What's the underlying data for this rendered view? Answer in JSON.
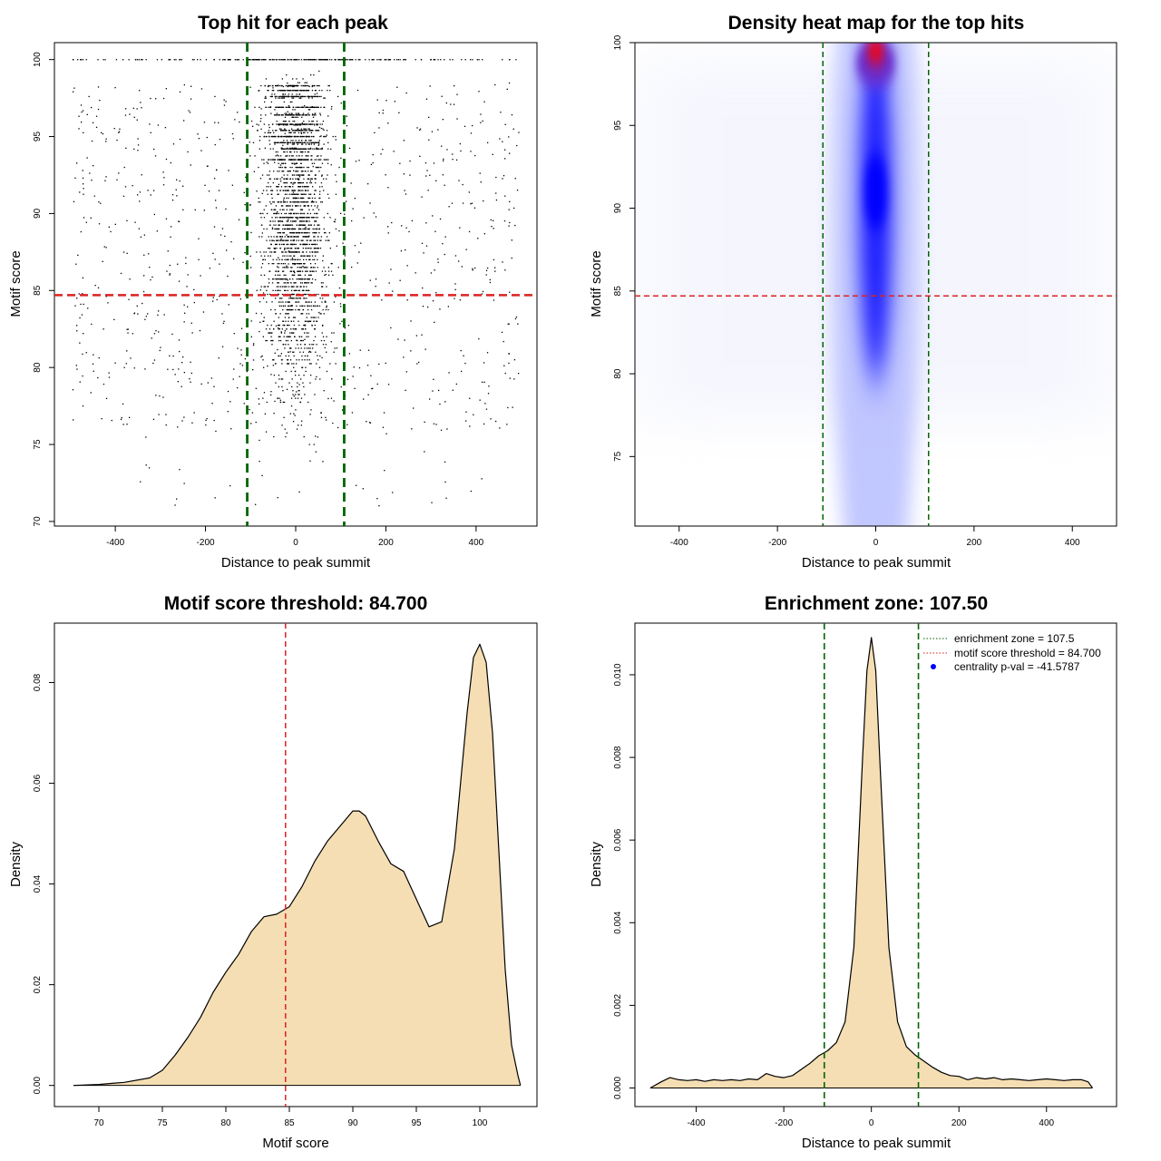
{
  "chart_data": [
    {
      "id": "p1",
      "type": "scatter",
      "title": "Top hit for each peak",
      "xlabel": "Distance to peak summit",
      "ylabel": "Motif score",
      "xlim": [
        -535,
        535
      ],
      "ylim": [
        69.7,
        101.1
      ],
      "xticks": [
        -400,
        -200,
        0,
        200,
        400
      ],
      "yticks": [
        70,
        75,
        80,
        85,
        90,
        95,
        100
      ],
      "threshold_y": 84.7,
      "zone_x": [
        -107.5,
        107.5
      ],
      "point_density_sd_center": 45,
      "point_count_approx": 3000
    },
    {
      "id": "p2",
      "type": "heatmap",
      "title": "Density heat map for the top hits",
      "xlabel": "Distance to peak summit",
      "ylabel": "Motif score",
      "xlim": [
        -490,
        490
      ],
      "ylim": [
        70.8,
        100
      ],
      "xticks": [
        -400,
        -200,
        0,
        200,
        400
      ],
      "yticks": [
        75,
        80,
        85,
        90,
        95,
        100
      ],
      "threshold_y": 84.7,
      "zone_x": [
        -107.5,
        107.5
      ],
      "hotspots": [
        {
          "x": 0,
          "y": 99.5,
          "label": "red peak"
        },
        {
          "x": 0,
          "y": 91,
          "label": "blue core"
        }
      ]
    },
    {
      "id": "p3",
      "type": "area",
      "title": "Motif score threshold: 84.700",
      "xlabel": "Motif score",
      "ylabel": "Density",
      "xlim": [
        66.5,
        104.5
      ],
      "ylim": [
        -0.0042,
        0.0918
      ],
      "xticks": [
        70,
        75,
        80,
        85,
        90,
        95,
        100
      ],
      "yticks": [
        0.0,
        0.02,
        0.04,
        0.06,
        0.08
      ],
      "ytick_labels": [
        "0.00",
        "0.02",
        "0.04",
        "0.06",
        "0.08"
      ],
      "threshold_x": 84.7,
      "x": [
        68,
        70,
        72,
        74,
        75,
        76,
        77,
        78,
        79,
        80,
        81,
        82,
        83,
        84,
        85,
        86,
        87,
        88,
        89,
        90,
        90.5,
        91,
        92,
        93,
        94,
        95,
        96,
        97,
        98,
        99,
        99.5,
        100,
        100.5,
        101,
        102,
        102.5,
        103,
        103.2
      ],
      "y": [
        0.0,
        0.0002,
        0.0006,
        0.0015,
        0.003,
        0.006,
        0.0095,
        0.0135,
        0.0185,
        0.0225,
        0.026,
        0.0305,
        0.0335,
        0.034,
        0.0355,
        0.0395,
        0.0445,
        0.0485,
        0.0515,
        0.0545,
        0.0545,
        0.0535,
        0.0485,
        0.044,
        0.0425,
        0.037,
        0.0315,
        0.0325,
        0.047,
        0.074,
        0.085,
        0.0876,
        0.084,
        0.07,
        0.023,
        0.008,
        0.002,
        0.0
      ]
    },
    {
      "id": "p4",
      "type": "area",
      "title": "Enrichment zone: 107.50",
      "xlabel": "Distance to peak summit",
      "ylabel": "Density",
      "xlim": [
        -540,
        560
      ],
      "ylim": [
        -0.00045,
        0.01125
      ],
      "xticks": [
        -400,
        -200,
        0,
        200,
        400
      ],
      "yticks": [
        0.0,
        0.002,
        0.004,
        0.006,
        0.008,
        0.01
      ],
      "ytick_labels": [
        "0.000",
        "0.002",
        "0.004",
        "0.006",
        "0.008",
        "0.010"
      ],
      "zone_x": [
        -107.5,
        107.5
      ],
      "x": [
        -505,
        -480,
        -460,
        -440,
        -420,
        -400,
        -380,
        -360,
        -340,
        -320,
        -300,
        -280,
        -260,
        -240,
        -220,
        -200,
        -180,
        -160,
        -140,
        -120,
        -100,
        -80,
        -60,
        -40,
        -20,
        -10,
        0,
        10,
        20,
        40,
        60,
        80,
        100,
        120,
        140,
        160,
        180,
        200,
        220,
        240,
        260,
        280,
        300,
        320,
        340,
        360,
        380,
        400,
        420,
        440,
        460,
        480,
        495,
        505
      ],
      "y": [
        0.0,
        0.00015,
        0.00025,
        0.0002,
        0.00018,
        0.0002,
        0.00016,
        0.0002,
        0.00018,
        0.0002,
        0.00018,
        0.00022,
        0.0002,
        0.00035,
        0.00028,
        0.00025,
        0.0003,
        0.00045,
        0.0006,
        0.00078,
        0.0009,
        0.0011,
        0.0016,
        0.0034,
        0.008,
        0.0101,
        0.0109,
        0.0101,
        0.0078,
        0.0034,
        0.0016,
        0.001,
        0.0008,
        0.00065,
        0.0005,
        0.00038,
        0.0003,
        0.00028,
        0.0002,
        0.00025,
        0.00022,
        0.00025,
        0.0002,
        0.00022,
        0.0002,
        0.00018,
        0.0002,
        0.00022,
        0.0002,
        0.00018,
        0.0002,
        0.0002,
        0.00015,
        0.0
      ],
      "legend": [
        {
          "label": "enrichment zone = 107.5",
          "color": "#006400",
          "style": "dotted"
        },
        {
          "label": "motif score threshold = 84.700",
          "color": "#dd2222",
          "style": "dotted"
        },
        {
          "label": "centrality p-val = -41.5787",
          "color": "#0000ff",
          "style": "dot"
        }
      ]
    }
  ],
  "colors": {
    "fill": "#f5deb3",
    "threshold": "#dd2222",
    "zone": "#006400",
    "heat_low": "#ffffff",
    "heat_mid": "#0000ff",
    "heat_high": "#ff0000"
  }
}
